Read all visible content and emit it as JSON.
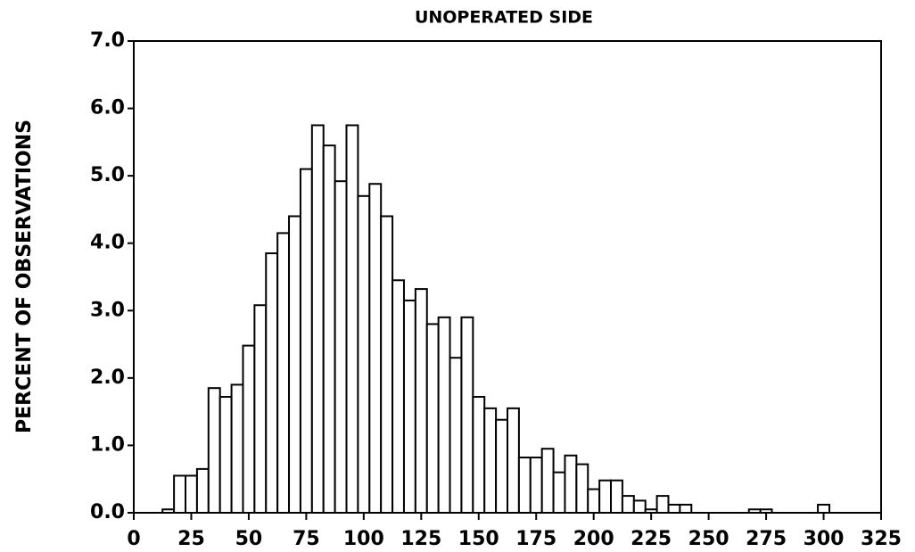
{
  "chart_data": {
    "type": "histogram",
    "title": "UNOPERATED SIDE",
    "ylabel": "PERCENT OF OBSERVATIONS",
    "bins": [
      12.5,
      17.5,
      22.5,
      27.5,
      32.5,
      37.5,
      42.5,
      47.5,
      52.5,
      57.5,
      62.5,
      67.5,
      72.5,
      77.5,
      82.5,
      87.5,
      92.5,
      97.5,
      102.5,
      107.5,
      112.5,
      117.5,
      122.5,
      127.5,
      132.5,
      137.5,
      142.5,
      147.5,
      152.5,
      157.5,
      162.5,
      167.5,
      172.5,
      177.5,
      182.5,
      187.5,
      192.5,
      197.5,
      202.5,
      207.5,
      212.5,
      217.5,
      222.5,
      227.5,
      232.5,
      237.5,
      242.5,
      247.5,
      252.5,
      257.5,
      262.5,
      267.5,
      272.5,
      277.5,
      282.5,
      287.5,
      292.5,
      297.5,
      302.5
    ],
    "values": [
      0.05,
      0.55,
      0.55,
      0.65,
      1.85,
      1.72,
      1.9,
      2.48,
      3.08,
      3.85,
      4.15,
      4.4,
      5.1,
      5.75,
      5.45,
      4.92,
      5.75,
      4.7,
      4.88,
      4.4,
      3.45,
      3.15,
      3.32,
      2.8,
      2.9,
      2.3,
      2.9,
      1.72,
      1.55,
      1.38,
      1.55,
      0.82,
      0.82,
      0.95,
      0.6,
      0.85,
      0.72,
      0.35,
      0.48,
      0.48,
      0.25,
      0.18,
      0.05,
      0.25,
      0.12,
      0.12,
      0,
      0,
      0,
      0,
      0,
      0.05,
      0.05,
      0,
      0,
      0,
      0,
      0.12
    ],
    "color": "#ffffff",
    "xlim": [
      0,
      325
    ],
    "xticks": [
      0,
      25,
      50,
      75,
      100,
      125,
      150,
      175,
      200,
      225,
      250,
      275,
      300,
      325
    ],
    "ylim": [
      0,
      7
    ],
    "yticks": [
      {
        "value": 0,
        "label": "0.0"
      },
      {
        "value": 1,
        "label": "1.0"
      },
      {
        "value": 2,
        "label": "2.0"
      },
      {
        "value": 3,
        "label": "3.0"
      },
      {
        "value": 4,
        "label": "4.0"
      },
      {
        "value": 5,
        "label": "5.0"
      },
      {
        "value": 6,
        "label": "6.0"
      },
      {
        "value": 7,
        "label": "7.0"
      }
    ],
    "grid": false
  }
}
